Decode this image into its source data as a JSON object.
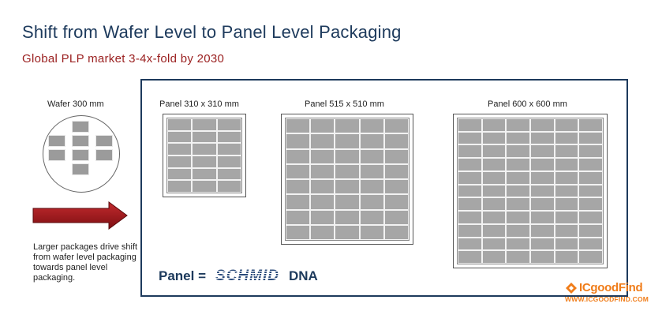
{
  "title": "Shift from Wafer Level to Panel Level Packaging",
  "subtitle": "Global PLP market 3-4x-fold by 2030",
  "wafer": {
    "label": "Wafer 300 mm"
  },
  "note": "Larger packages drive shift from wafer level packaging towards panel level packaging.",
  "panels": [
    {
      "label": "Panel 310 x 310 mm",
      "cols": 3,
      "rows": 6
    },
    {
      "label": "Panel 515 x 510 mm",
      "cols": 5,
      "rows": 8
    },
    {
      "label": "Panel 600 x 600 mm",
      "cols": 6,
      "rows": 11
    }
  ],
  "tagline": {
    "prefix": "Panel =",
    "logo": "SCHMID",
    "suffix": "DNA"
  },
  "watermark": {
    "name": "ICgoodFind",
    "url": "WWW.ICGOODFIND.COM"
  },
  "colors": {
    "title": "#1d3a5c",
    "subtitle": "#9a1f1f",
    "arrow": "#a0161b",
    "cell": "#a6a6a6",
    "brand": "#f07d1a"
  }
}
